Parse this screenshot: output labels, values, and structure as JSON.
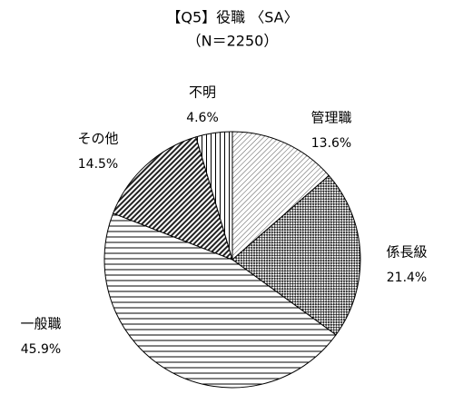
{
  "chart_data": {
    "type": "pie",
    "title": "【Q5】役職 〈SA〉",
    "subtitle": "（N＝2250）",
    "categories": [
      "管理職",
      "係長級",
      "一般職",
      "その他",
      "不明"
    ],
    "values": [
      13.6,
      21.4,
      45.9,
      14.5,
      4.6
    ],
    "value_labels": [
      "13.6%",
      "21.4%",
      "45.9%",
      "14.5%",
      "4.6%"
    ]
  }
}
